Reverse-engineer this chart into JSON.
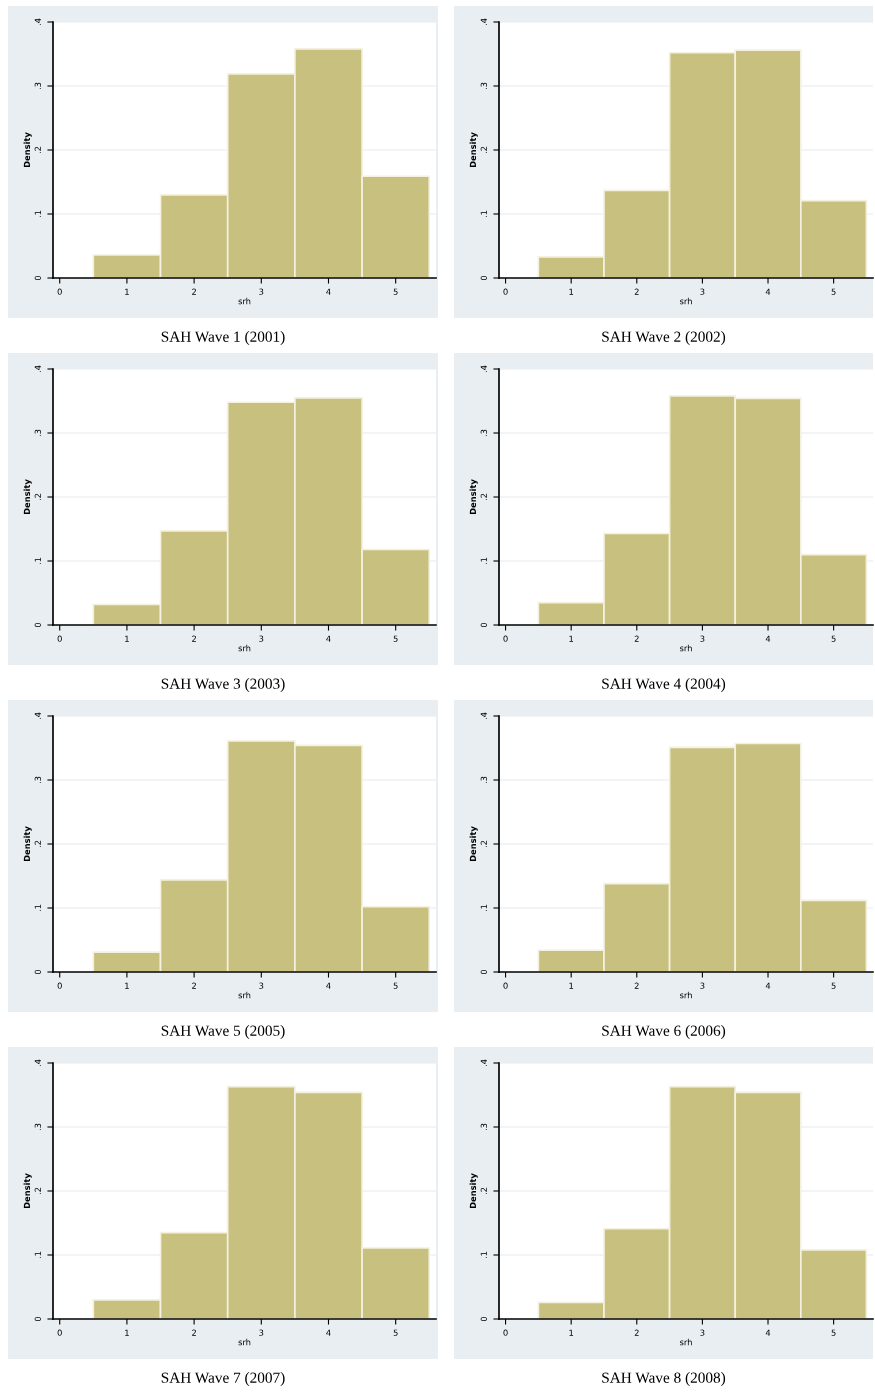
{
  "chart_data": [
    {
      "type": "histogram",
      "title": "SAH Wave 1 (2001)",
      "xlabel": "srh",
      "ylabel": "Density",
      "bins": [
        0.5,
        1.5,
        2.5,
        3.5,
        4.5,
        5.5
      ],
      "values": [
        0.036,
        0.13,
        0.319,
        0.358,
        0.159
      ],
      "color": "#c8c07e",
      "xlim": [
        -0.1,
        5.6
      ],
      "xticks": [
        0,
        1,
        2,
        3,
        4,
        5
      ],
      "ylim": [
        0,
        0.4
      ],
      "yticks": [
        0,
        {
          "value": 0.1,
          "label": ".1"
        },
        {
          "value": 0.2,
          "label": ".2"
        },
        {
          "value": 0.3,
          "label": ".3"
        },
        {
          "value": 0.4,
          "label": ".4"
        }
      ],
      "grid": "y"
    },
    {
      "type": "histogram",
      "title": "SAH Wave 2 (2002)",
      "xlabel": "srh",
      "ylabel": "Density",
      "bins": [
        0.5,
        1.5,
        2.5,
        3.5,
        4.5,
        5.5
      ],
      "values": [
        0.033,
        0.137,
        0.352,
        0.356,
        0.121
      ],
      "color": "#c8c07e",
      "xlim": [
        -0.1,
        5.6
      ],
      "xticks": [
        0,
        1,
        2,
        3,
        4,
        5
      ],
      "ylim": [
        0,
        0.4
      ],
      "yticks": [
        0,
        {
          "value": 0.1,
          "label": ".1"
        },
        {
          "value": 0.2,
          "label": ".2"
        },
        {
          "value": 0.3,
          "label": ".3"
        },
        {
          "value": 0.4,
          "label": ".4"
        }
      ],
      "grid": "y"
    },
    {
      "type": "histogram",
      "title": "SAH Wave 3 (2003)",
      "xlabel": "srh",
      "ylabel": "Density",
      "bins": [
        0.5,
        1.5,
        2.5,
        3.5,
        4.5,
        5.5
      ],
      "values": [
        0.032,
        0.147,
        0.348,
        0.355,
        0.118
      ],
      "color": "#c8c07e",
      "xlim": [
        -0.1,
        5.6
      ],
      "xticks": [
        0,
        1,
        2,
        3,
        4,
        5
      ],
      "ylim": [
        0,
        0.4
      ],
      "yticks": [
        0,
        {
          "value": 0.1,
          "label": ".1"
        },
        {
          "value": 0.2,
          "label": ".2"
        },
        {
          "value": 0.3,
          "label": ".3"
        },
        {
          "value": 0.4,
          "label": ".4"
        }
      ],
      "grid": "y"
    },
    {
      "type": "histogram",
      "title": "SAH Wave 4 (2004)",
      "xlabel": "srh",
      "ylabel": "Density",
      "bins": [
        0.5,
        1.5,
        2.5,
        3.5,
        4.5,
        5.5
      ],
      "values": [
        0.035,
        0.143,
        0.358,
        0.354,
        0.11
      ],
      "color": "#c8c07e",
      "xlim": [
        -0.1,
        5.6
      ],
      "xticks": [
        0,
        1,
        2,
        3,
        4,
        5
      ],
      "ylim": [
        0,
        0.4
      ],
      "yticks": [
        0,
        {
          "value": 0.1,
          "label": ".1"
        },
        {
          "value": 0.2,
          "label": ".2"
        },
        {
          "value": 0.3,
          "label": ".3"
        },
        {
          "value": 0.4,
          "label": ".4"
        }
      ],
      "grid": "y"
    },
    {
      "type": "histogram",
      "title": "SAH Wave 5 (2005)",
      "xlabel": "srh",
      "ylabel": "Density",
      "bins": [
        0.5,
        1.5,
        2.5,
        3.5,
        4.5,
        5.5
      ],
      "values": [
        0.031,
        0.144,
        0.361,
        0.354,
        0.102
      ],
      "color": "#c8c07e",
      "xlim": [
        -0.1,
        5.6
      ],
      "xticks": [
        0,
        1,
        2,
        3,
        4,
        5
      ],
      "ylim": [
        0,
        0.4
      ],
      "yticks": [
        0,
        {
          "value": 0.1,
          "label": ".1"
        },
        {
          "value": 0.2,
          "label": ".2"
        },
        {
          "value": 0.3,
          "label": ".3"
        },
        {
          "value": 0.4,
          "label": ".4"
        }
      ],
      "grid": "y"
    },
    {
      "type": "histogram",
      "title": "SAH Wave 6 (2006)",
      "xlabel": "srh",
      "ylabel": "Density",
      "bins": [
        0.5,
        1.5,
        2.5,
        3.5,
        4.5,
        5.5
      ],
      "values": [
        0.034,
        0.138,
        0.351,
        0.357,
        0.112
      ],
      "color": "#c8c07e",
      "xlim": [
        -0.1,
        5.6
      ],
      "xticks": [
        0,
        1,
        2,
        3,
        4,
        5
      ],
      "ylim": [
        0,
        0.4
      ],
      "yticks": [
        0,
        {
          "value": 0.1,
          "label": ".1"
        },
        {
          "value": 0.2,
          "label": ".2"
        },
        {
          "value": 0.3,
          "label": ".3"
        },
        {
          "value": 0.4,
          "label": ".4"
        }
      ],
      "grid": "y"
    },
    {
      "type": "histogram",
      "title": "SAH Wave 7 (2007)",
      "xlabel": "srh",
      "ylabel": "Density",
      "bins": [
        0.5,
        1.5,
        2.5,
        3.5,
        4.5,
        5.5
      ],
      "values": [
        0.03,
        0.135,
        0.363,
        0.354,
        0.111
      ],
      "color": "#c8c07e",
      "xlim": [
        -0.1,
        5.6
      ],
      "xticks": [
        0,
        1,
        2,
        3,
        4,
        5
      ],
      "ylim": [
        0,
        0.4
      ],
      "yticks": [
        0,
        {
          "value": 0.1,
          "label": ".1"
        },
        {
          "value": 0.2,
          "label": ".2"
        },
        {
          "value": 0.3,
          "label": ".3"
        },
        {
          "value": 0.4,
          "label": ".4"
        }
      ],
      "grid": "y"
    },
    {
      "type": "histogram",
      "title": "SAH Wave 8 (2008)",
      "xlabel": "srh",
      "ylabel": "Density",
      "bins": [
        0.5,
        1.5,
        2.5,
        3.5,
        4.5,
        5.5
      ],
      "values": [
        0.026,
        0.141,
        0.363,
        0.354,
        0.108
      ],
      "color": "#c8c07e",
      "xlim": [
        -0.1,
        5.6
      ],
      "xticks": [
        0,
        1,
        2,
        3,
        4,
        5
      ],
      "ylim": [
        0,
        0.4
      ],
      "yticks": [
        0,
        {
          "value": 0.1,
          "label": ".1"
        },
        {
          "value": 0.2,
          "label": ".2"
        },
        {
          "value": 0.3,
          "label": ".3"
        },
        {
          "value": 0.4,
          "label": ".4"
        }
      ],
      "grid": "y"
    }
  ]
}
